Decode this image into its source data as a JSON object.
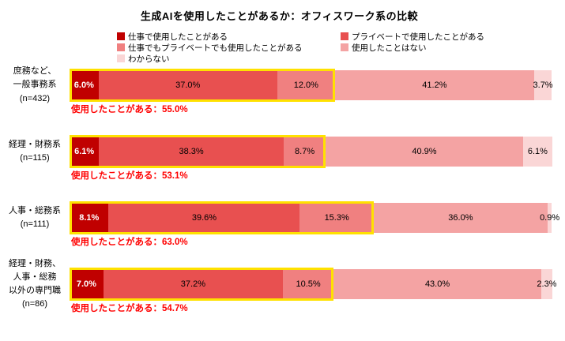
{
  "title": "生成AIを使用したことがあるか：オフィスワーク系の比較",
  "legend": [
    {
      "label": "仕事で使用したことがある",
      "color": "#c00000"
    },
    {
      "label": "プライベートで使用したことがある",
      "color": "#e85050"
    },
    {
      "label": "仕事でもプライベートでも使用したことがある",
      "color": "#f08080"
    },
    {
      "label": "使用したことはない",
      "color": "#f4a3a3"
    },
    {
      "label": "わからない",
      "color": "#fad6d6"
    }
  ],
  "highlight_color": "#ffe100",
  "chart_data": {
    "type": "bar",
    "orientation": "horizontal-stacked",
    "title": "生成AIを使用したことがあるか：オフィスワーク系の比較",
    "xlim": [
      0,
      100
    ],
    "legend_position": "top",
    "series_names": [
      "仕事で使用したことがある",
      "プライベートで使用したことがある",
      "仕事でもプライベートでも使用したことがある",
      "使用したことはない",
      "わからない"
    ],
    "rows": [
      {
        "category": "庶務など、\n一般事務系\n(n=432)",
        "values": [
          6.0,
          37.0,
          12.0,
          41.2,
          3.7
        ],
        "labels": [
          "6.0%",
          "37.0%",
          "12.0%",
          "41.2%",
          "3.7%"
        ],
        "annotation": "使用したことがある：55.0%",
        "used_total": 55.0
      },
      {
        "category": "経理・財務系\n(n=115)",
        "values": [
          6.1,
          38.3,
          8.7,
          40.9,
          6.1
        ],
        "labels": [
          "6.1%",
          "38.3%",
          "8.7%",
          "40.9%",
          "6.1%"
        ],
        "annotation": "使用したことがある：53.1%",
        "used_total": 53.1
      },
      {
        "category": "人事・総務系\n(n=111)",
        "values": [
          8.1,
          39.6,
          15.3,
          36.0,
          0.9
        ],
        "labels": [
          "8.1%",
          "39.6%",
          "15.3%",
          "36.0%",
          "0.9%"
        ],
        "annotation": "使用したことがある：63.0%",
        "used_total": 63.0
      },
      {
        "category": "経理・財務、\n人事・総務\n以外の専門職\n(n=86)",
        "values": [
          7.0,
          37.2,
          10.5,
          43.0,
          2.3
        ],
        "labels": [
          "7.0%",
          "37.2%",
          "10.5%",
          "43.0%",
          "2.3%"
        ],
        "annotation": "使用したことがある：54.7%",
        "used_total": 54.7
      }
    ]
  }
}
